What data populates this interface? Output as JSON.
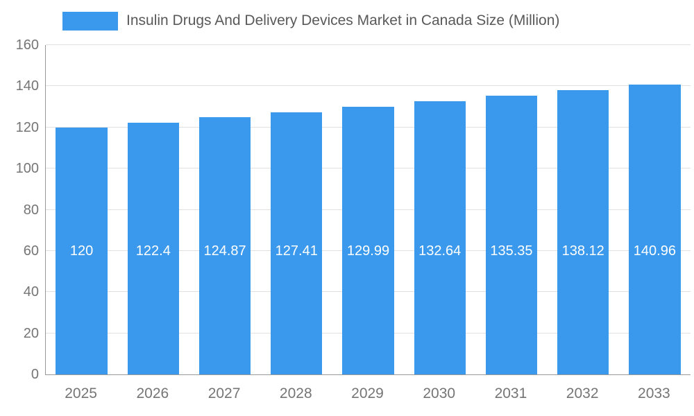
{
  "chart_data": {
    "type": "bar",
    "title": "Insulin Drugs And Delivery Devices Market in Canada Size (Million)",
    "legend": [
      "Insulin Drugs And Delivery Devices Market in Canada Size (Million)"
    ],
    "legend_position": "top",
    "categories": [
      "2025",
      "2026",
      "2027",
      "2028",
      "2029",
      "2030",
      "2031",
      "2032",
      "2033"
    ],
    "values": [
      120,
      122.4,
      124.87,
      127.41,
      129.99,
      132.64,
      135.35,
      138.12,
      140.96
    ],
    "value_labels": [
      "120",
      "122.4",
      "124.87",
      "127.41",
      "129.99",
      "132.64",
      "135.35",
      "138.12",
      "140.96"
    ],
    "xlabel": "",
    "ylabel": "",
    "ylim": [
      0,
      160
    ],
    "ytick_step": 20,
    "ytick_labels": [
      "0",
      "20",
      "40",
      "60",
      "80",
      "100",
      "120",
      "140",
      "160"
    ],
    "grid": true,
    "colors": {
      "bar": "#3A99EC",
      "grid": "#E0E0E0",
      "axis": "#999999",
      "tick_text": "#757575",
      "title_text": "#595959",
      "bar_label": "#FFFFFF",
      "background": "#FFFFFF"
    }
  }
}
